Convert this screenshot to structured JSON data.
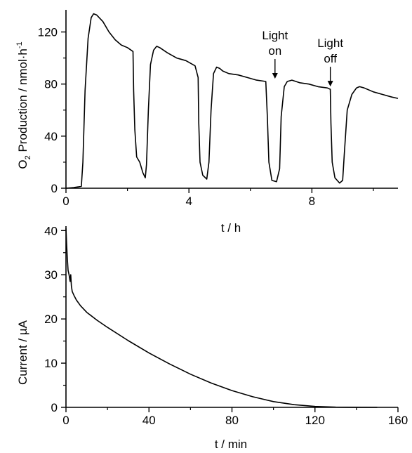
{
  "chart_data": [
    {
      "type": "line",
      "title": "",
      "xlabel": "t / h",
      "ylabel_parts": {
        "pre": "O",
        "sub": "2",
        "mid": " Production / nmol·h",
        "sup": "-1"
      },
      "xlim": [
        0,
        10.8
      ],
      "ylim": [
        0,
        137
      ],
      "xticks": [
        0,
        4,
        8
      ],
      "yticks": [
        0,
        40,
        80,
        120
      ],
      "minor_xticks": [
        2,
        6,
        10
      ],
      "minor_yticks": [
        20,
        60,
        100
      ],
      "annotations": [
        {
          "lines": [
            "Light",
            "on"
          ],
          "x": 6.8,
          "y": 82
        },
        {
          "lines": [
            "Light",
            "off"
          ],
          "x": 8.6,
          "y": 76
        }
      ],
      "series": [
        {
          "x": [
            0,
            0.25,
            0.4,
            0.5,
            0.55,
            0.62,
            0.72,
            0.82,
            0.9,
            1.0,
            1.2,
            1.4,
            1.6,
            1.8,
            2.0,
            2.18,
            2.2,
            2.24,
            2.3,
            2.4,
            2.5,
            2.58,
            2.62,
            2.68,
            2.75,
            2.85,
            2.95,
            3.05,
            3.3,
            3.6,
            3.9,
            4.2,
            4.3,
            4.32,
            4.36,
            4.45,
            4.58,
            4.65,
            4.72,
            4.8,
            4.9,
            5.0,
            5.1,
            5.3,
            5.6,
            5.9,
            6.2,
            6.5,
            6.55,
            6.6,
            6.7,
            6.85,
            6.95,
            7.0,
            7.1,
            7.2,
            7.35,
            7.6,
            7.9,
            8.2,
            8.5,
            8.6,
            8.62,
            8.66,
            8.75,
            8.9,
            9.0,
            9.05,
            9.15,
            9.3,
            9.45,
            9.55,
            9.7,
            10.0,
            10.3,
            10.6,
            10.8
          ],
          "values": [
            0,
            0.5,
            1,
            1.5,
            20,
            75,
            115,
            131,
            134,
            133,
            128,
            120,
            114,
            110,
            108,
            105,
            75,
            45,
            24,
            20,
            12,
            8,
            18,
            60,
            95,
            106,
            109,
            108,
            104,
            100,
            98,
            94,
            85,
            50,
            20,
            10,
            7,
            20,
            60,
            88,
            93,
            92,
            90,
            88,
            87,
            85,
            83,
            82,
            55,
            20,
            6,
            5,
            15,
            55,
            78,
            82,
            83,
            81,
            80,
            78,
            77,
            76,
            50,
            20,
            8,
            4,
            6,
            25,
            60,
            72,
            77,
            78,
            77,
            74,
            72,
            70,
            69
          ]
        }
      ]
    },
    {
      "type": "line",
      "title": "",
      "xlabel": "t / min",
      "ylabel": "Current / µA",
      "xlim": [
        0,
        160
      ],
      "ylim": [
        0,
        41
      ],
      "xticks": [
        0,
        40,
        80,
        120,
        160
      ],
      "yticks": [
        0,
        10,
        20,
        30,
        40
      ],
      "minor_xticks": [
        20,
        60,
        100,
        140
      ],
      "minor_yticks": [
        5,
        15,
        25,
        35
      ],
      "series": [
        {
          "x": [
            0,
            0.3,
            0.6,
            1.0,
            1.5,
            2.0,
            2.3,
            2.6,
            3.0,
            4.0,
            5.0,
            7.0,
            10,
            15,
            20,
            30,
            40,
            50,
            60,
            70,
            80,
            90,
            100,
            110,
            120,
            130,
            140,
            150
          ],
          "values": [
            40.5,
            37,
            34,
            31,
            30,
            28.5,
            30,
            27.5,
            26.2,
            25.2,
            24.3,
            23.0,
            21.5,
            19.7,
            18.1,
            15.1,
            12.3,
            9.8,
            7.5,
            5.5,
            3.8,
            2.4,
            1.3,
            0.6,
            0.2,
            0.05,
            0.01,
            0
          ]
        }
      ]
    }
  ]
}
